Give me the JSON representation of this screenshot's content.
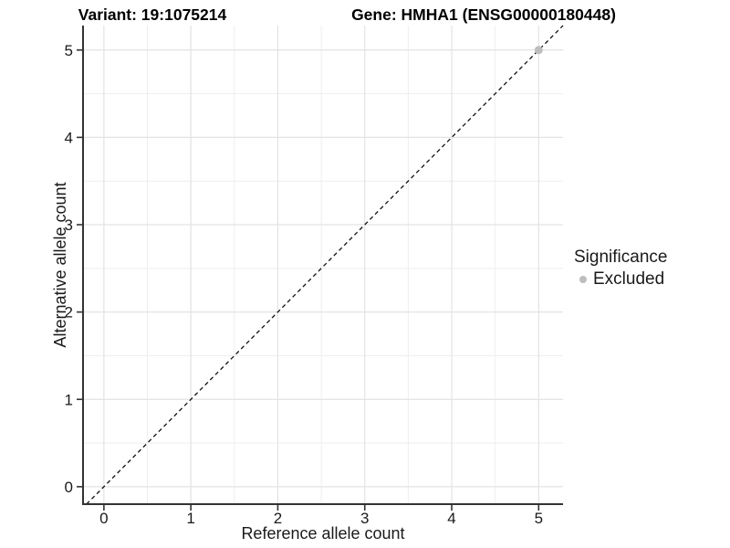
{
  "chart_data": {
    "type": "scatter",
    "title_left": "Variant: 19:1075214",
    "title_right": "Gene: HMHA1 (ENSG00000180448)",
    "xlabel": "Reference allele count",
    "ylabel": "Alternative allele count",
    "xlim": [
      -0.24,
      5.28
    ],
    "ylim": [
      -0.2,
      5.28
    ],
    "xticks": [
      0,
      1,
      2,
      3,
      4,
      5
    ],
    "yticks": [
      0,
      1,
      2,
      3,
      4,
      5
    ],
    "grid": "major+minor",
    "reference_line": {
      "kind": "identity y=x",
      "style": "dashed",
      "color": "#111111"
    },
    "series": [
      {
        "name": "Excluded",
        "color": "#bdbdbd",
        "points": [
          [
            5,
            5
          ]
        ]
      }
    ],
    "legend": {
      "title": "Significance",
      "position": "right",
      "entries": [
        {
          "label": "Excluded",
          "color": "#bdbdbd",
          "marker": "circle"
        }
      ]
    },
    "colors": {
      "background": "#ffffff",
      "grid_major": "#e3e3e3",
      "grid_minor": "#eeeeee",
      "axis_line": "#333333",
      "tick_mark": "#333333",
      "tick_text": "#1a1a1a",
      "point": "#bdbdbd"
    }
  }
}
